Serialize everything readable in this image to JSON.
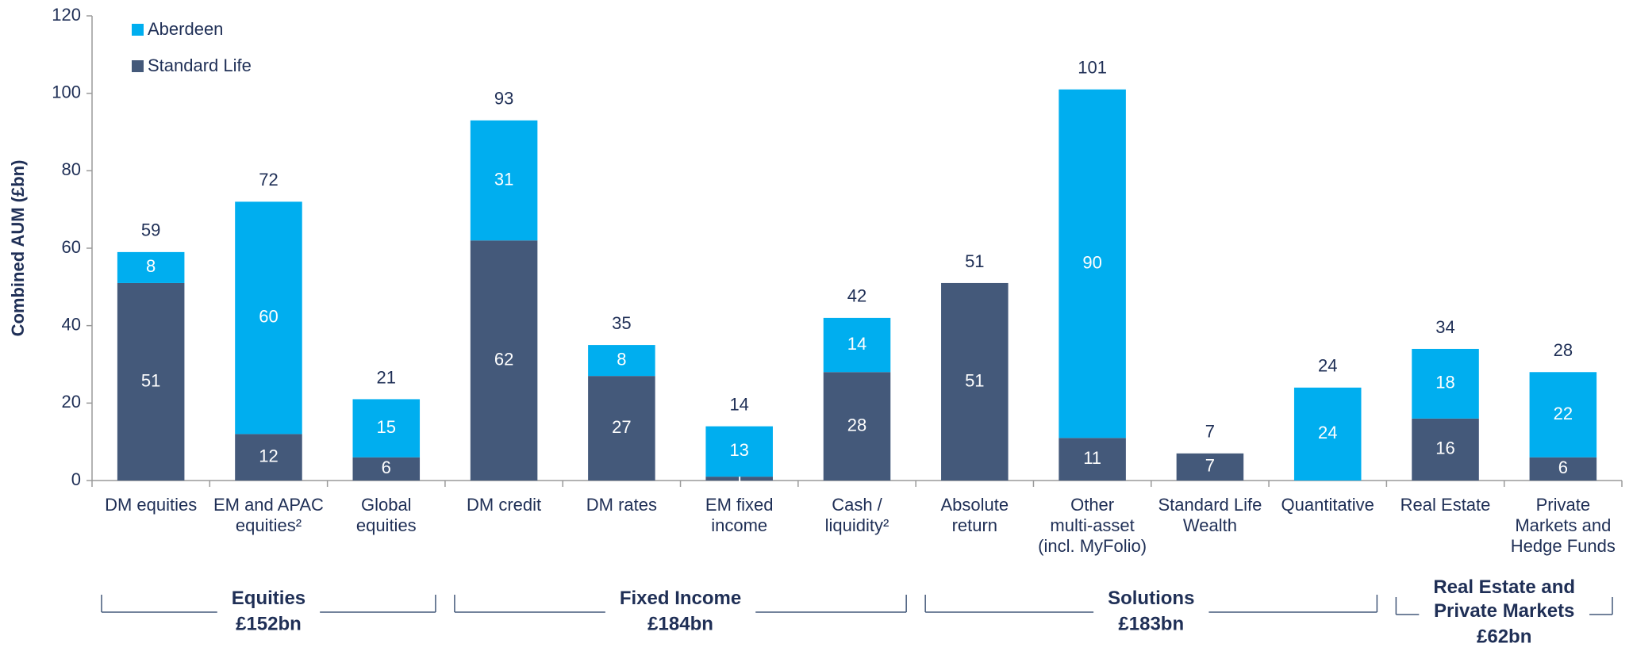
{
  "chart_data": {
    "type": "bar",
    "stacked": true,
    "ylabel": "Combined AUM (£bn)",
    "groups": [
      {
        "name": "Equities",
        "total": "£152bn",
        "categories": [
          "DM equities",
          "EM and APAC equities²",
          "Global equities"
        ]
      },
      {
        "name": "Fixed Income",
        "total": "£184bn",
        "categories": [
          "DM credit",
          "DM rates",
          "EM fixed income",
          "Cash / liquidity²"
        ]
      },
      {
        "name": "Solutions",
        "total": "£183bn",
        "categories": [
          "Absolute return",
          "Other multi-asset (incl. MyFolio)",
          "Standard Life Wealth",
          "Quantitative"
        ]
      },
      {
        "name": "Real Estate and Private Markets",
        "total": "£62bn",
        "categories": [
          "Real Estate",
          "Private Markets and Hedge Funds"
        ]
      }
    ],
    "series": [
      {
        "name": "Standard Life",
        "color": "#44597a",
        "values": [
          51,
          12,
          6,
          62,
          27,
          1,
          28,
          51,
          11,
          7,
          null,
          16,
          6
        ]
      },
      {
        "name": "Aberdeen",
        "color": "#00aeef",
        "values": [
          8,
          60,
          15,
          31,
          8,
          13,
          14,
          null,
          90,
          null,
          24,
          18,
          22
        ]
      }
    ],
    "totals": [
      59,
      72,
      21,
      93,
      35,
      14,
      42,
      51,
      101,
      7,
      24,
      34,
      28
    ],
    "ylim": [
      0,
      120
    ],
    "yticks": [
      0,
      20,
      40,
      60,
      80,
      100,
      120
    ],
    "legend": "top-left"
  }
}
